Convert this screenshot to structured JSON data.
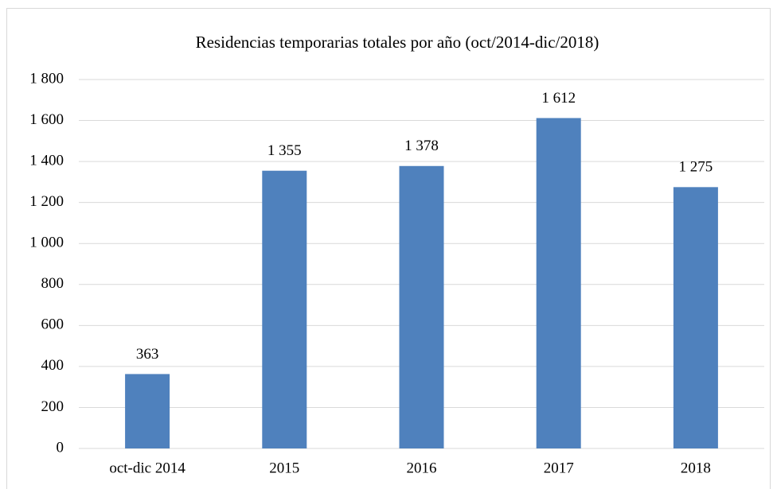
{
  "chart_data": {
    "type": "bar",
    "title": "Residencias temporarias totales por año (oct/2014-dic/2018)",
    "categories": [
      "oct-dic 2014",
      "2015",
      "2016",
      "2017",
      "2018"
    ],
    "values": [
      363,
      1355,
      1378,
      1612,
      1275
    ],
    "value_labels": [
      "363",
      "1 355",
      "1 378",
      "1 612",
      "1 275"
    ],
    "color": "#4f81bd",
    "ylim": [
      0,
      1800
    ],
    "yticks": [
      0,
      200,
      400,
      600,
      800,
      {
        "value": 1000,
        "label": "1 000"
      },
      {
        "value": 1200,
        "label": "1 200"
      },
      {
        "value": 1400,
        "label": "1 400"
      },
      {
        "value": 1600,
        "label": "1 600"
      },
      {
        "value": 1800,
        "label": "1 800"
      }
    ],
    "grid": true
  }
}
